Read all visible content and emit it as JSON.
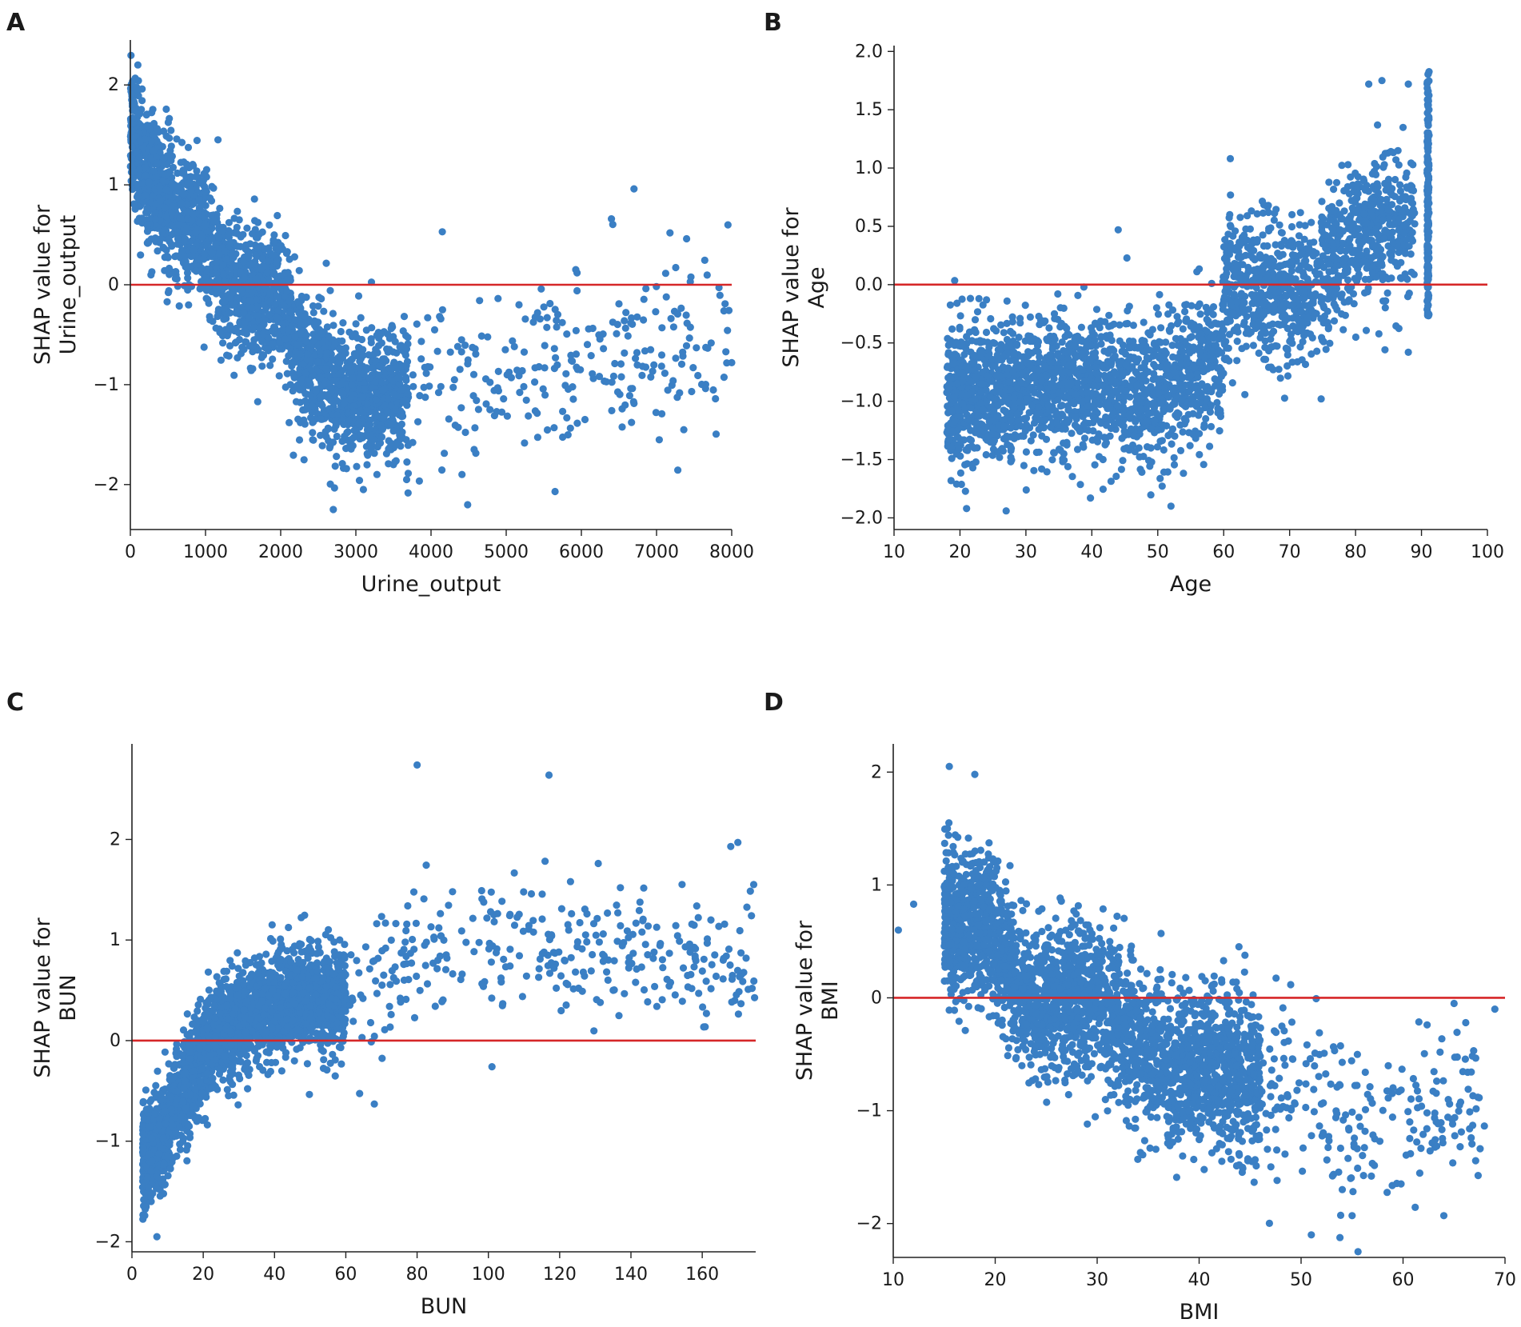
{
  "figure": {
    "point_color": "#3a7fc4",
    "ref_line_color": "#d62728"
  },
  "chart_data": [
    {
      "panel": "A",
      "type": "scatter",
      "title": "",
      "xlabel": "Urine_output",
      "ylabel": "SHAP value for\nUrine_output",
      "xlim": [
        0,
        8000
      ],
      "ylim": [
        -2.45,
        2.45
      ],
      "xticks": [
        0,
        1000,
        2000,
        3000,
        4000,
        5000,
        6000,
        7000,
        8000
      ],
      "yticks": [
        -2,
        -1,
        0,
        1,
        2
      ],
      "ref_line_y": 0,
      "approximate_points": true,
      "generator": {
        "seed": 11,
        "dense_n": 2600,
        "sparse_n": 260,
        "x_dense": [
          0,
          3700
        ],
        "x_sparse": [
          3700,
          8000
        ],
        "knots": [
          [
            0,
            1.5
          ],
          [
            200,
            1.15
          ],
          [
            600,
            0.75
          ],
          [
            1000,
            0.45
          ],
          [
            1200,
            0.1
          ],
          [
            1500,
            -0.05
          ],
          [
            2000,
            -0.15
          ],
          [
            2300,
            -0.7
          ],
          [
            2700,
            -1.05
          ],
          [
            3500,
            -1.15
          ],
          [
            4500,
            -0.95
          ],
          [
            6000,
            -0.7
          ],
          [
            8000,
            -0.5
          ]
        ],
        "noise": 0.33,
        "outliers": [
          [
            2700,
            -2.25
          ],
          [
            3100,
            -2.05
          ],
          [
            5650,
            -2.07
          ],
          [
            6700,
            0.96
          ],
          [
            7950,
            0.6
          ],
          [
            6400,
            0.66
          ],
          [
            7400,
            0.46
          ],
          [
            8000,
            -0.78
          ],
          [
            100,
            2.2
          ],
          [
            4150,
            0.53
          ]
        ]
      }
    },
    {
      "panel": "B",
      "type": "scatter",
      "title": "",
      "xlabel": "Age",
      "ylabel": "SHAP value for\nAge",
      "xlim": [
        10,
        100
      ],
      "ylim": [
        -2.1,
        2.05
      ],
      "xticks": [
        10,
        20,
        30,
        40,
        50,
        60,
        70,
        80,
        90,
        100
      ],
      "yticks": [
        -2.0,
        -1.5,
        -1.0,
        -0.5,
        0.0,
        0.5,
        1.0,
        1.5,
        2.0
      ],
      "ytick_decimals": 1,
      "ref_line_y": 0,
      "approximate_points": true,
      "generator": {
        "seed": 23,
        "dense_n": 3000,
        "sparse_n": 0,
        "x_dense": [
          18,
          89
        ],
        "x_sparse": [
          0,
          0
        ],
        "knots": [
          [
            18,
            -0.95
          ],
          [
            30,
            -0.9
          ],
          [
            40,
            -0.85
          ],
          [
            50,
            -0.95
          ],
          [
            55,
            -0.8
          ],
          [
            59.5,
            -0.6
          ],
          [
            60.5,
            0.0
          ],
          [
            70,
            -0.1
          ],
          [
            75,
            0.05
          ],
          [
            80,
            0.45
          ],
          [
            89,
            0.55
          ]
        ],
        "noise": 0.3,
        "vertical_band": {
          "x": 91,
          "y_min": -0.28,
          "y_max": 1.85,
          "n": 160
        },
        "outliers": [
          [
            21,
            -1.92
          ],
          [
            27,
            -1.94
          ],
          [
            52,
            -1.9
          ],
          [
            44,
            0.47
          ],
          [
            84,
            1.75
          ],
          [
            88,
            1.72
          ],
          [
            82,
            1.72
          ],
          [
            61,
            1.08
          ],
          [
            88,
            -0.58
          ]
        ]
      }
    },
    {
      "panel": "C",
      "type": "scatter",
      "title": "",
      "xlabel": "BUN",
      "ylabel": "SHAP value for\nBUN",
      "xlim": [
        0,
        175
      ],
      "ylim": [
        -2.1,
        2.95
      ],
      "xticks": [
        0,
        20,
        40,
        60,
        80,
        100,
        120,
        140,
        160
      ],
      "yticks": [
        -2,
        -1,
        0,
        1,
        2
      ],
      "ref_line_y": 0,
      "approximate_points": true,
      "generator": {
        "seed": 37,
        "dense_n": 2400,
        "sparse_n": 330,
        "x_dense": [
          3,
          60
        ],
        "x_sparse": [
          60,
          175
        ],
        "knots": [
          [
            3,
            -1.2
          ],
          [
            8,
            -1.0
          ],
          [
            12,
            -0.7
          ],
          [
            20,
            -0.1
          ],
          [
            30,
            0.2
          ],
          [
            45,
            0.45
          ],
          [
            60,
            0.4
          ],
          [
            80,
            0.9
          ],
          [
            100,
            1.0
          ],
          [
            120,
            0.9
          ],
          [
            175,
            0.8
          ]
        ],
        "noise": 0.26,
        "outliers": [
          [
            7,
            -1.95
          ],
          [
            80,
            2.74
          ],
          [
            117,
            2.64
          ],
          [
            170,
            1.97
          ],
          [
            168,
            1.93
          ],
          [
            174,
            0.52
          ],
          [
            68,
            -0.63
          ],
          [
            101,
            -0.26
          ]
        ]
      }
    },
    {
      "panel": "D",
      "type": "scatter",
      "title": "",
      "xlabel": "BMI",
      "ylabel": "SHAP value for\nBMI",
      "xlim": [
        10,
        70
      ],
      "ylim": [
        -2.3,
        2.25
      ],
      "xticks": [
        10,
        20,
        30,
        40,
        50,
        60,
        70
      ],
      "yticks": [
        -2,
        -1,
        0,
        1,
        2
      ],
      "ref_line_y": 0,
      "approximate_points": true,
      "generator": {
        "seed": 53,
        "dense_n": 2800,
        "sparse_n": 280,
        "x_dense": [
          15,
          46
        ],
        "x_sparse": [
          40,
          68
        ],
        "knots": [
          [
            11,
            0.7
          ],
          [
            15,
            0.7
          ],
          [
            20,
            0.6
          ],
          [
            22,
            0.1
          ],
          [
            25,
            -0.05
          ],
          [
            28,
            0.05
          ],
          [
            30,
            -0.05
          ],
          [
            33,
            -0.3
          ],
          [
            35,
            -0.5
          ],
          [
            38,
            -0.65
          ],
          [
            42,
            -0.6
          ],
          [
            50,
            -0.9
          ],
          [
            55,
            -1.2
          ],
          [
            60,
            -1.0
          ],
          [
            68,
            -0.8
          ]
        ],
        "noise": 0.33,
        "outliers": [
          [
            10.5,
            0.6
          ],
          [
            12,
            0.83
          ],
          [
            15.5,
            2.05
          ],
          [
            18,
            1.98
          ],
          [
            51,
            -2.1
          ],
          [
            64,
            -1.93
          ],
          [
            65,
            -0.05
          ],
          [
            69,
            -0.1
          ],
          [
            55,
            -1.93
          ]
        ]
      }
    }
  ]
}
